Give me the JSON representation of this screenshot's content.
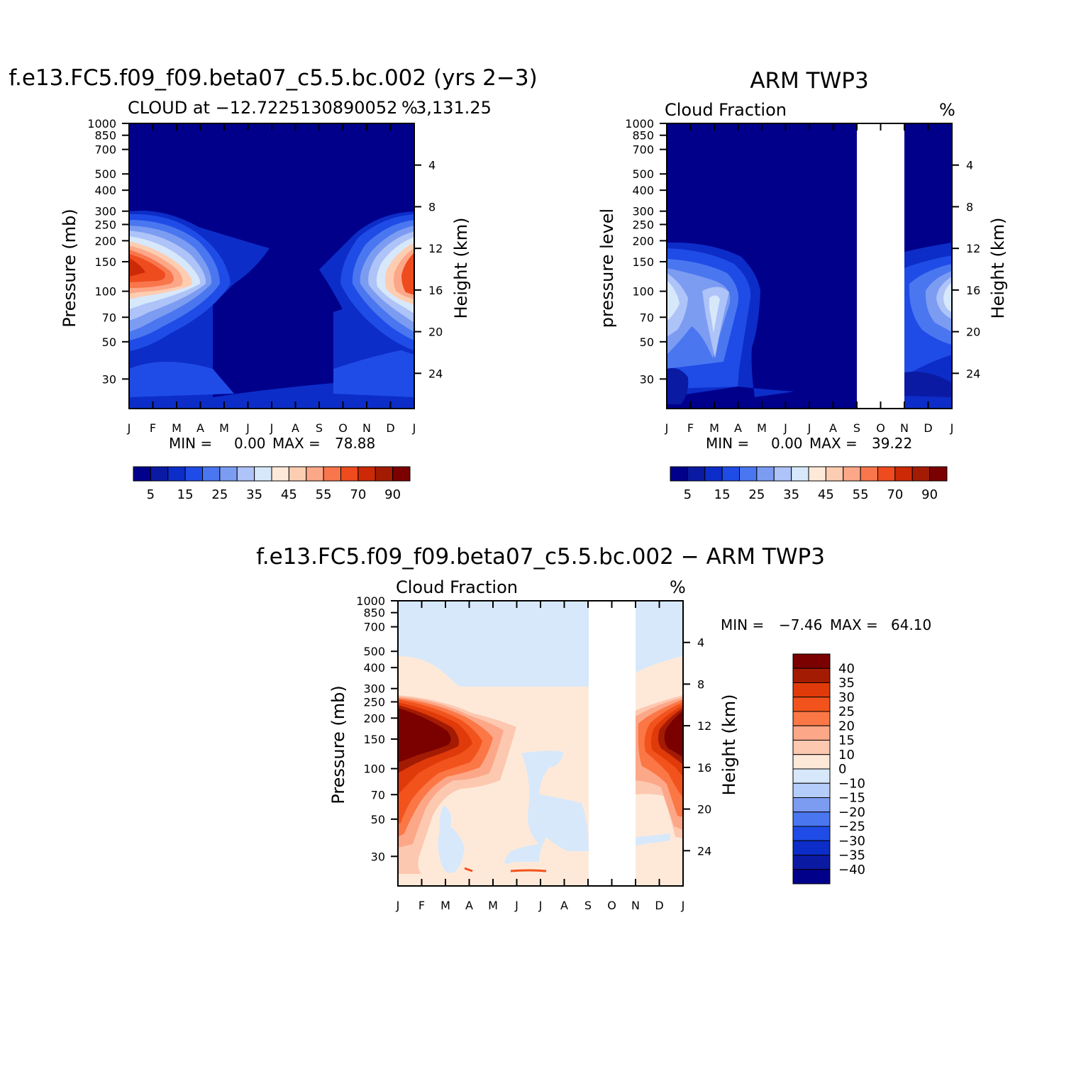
{
  "colors": {
    "cf_levels": [
      "#00008b",
      "#0a1aa3",
      "#0d2dc8",
      "#1f4ce6",
      "#4a77f0",
      "#7c9cf2",
      "#aec3f7",
      "#d7e8fb",
      "#fee9d9",
      "#fdcdb2",
      "#fca788",
      "#f9764c",
      "#ee4b1e",
      "#cc2a06",
      "#a41b03",
      "#7b0000"
    ],
    "diff_levels": [
      "#7b0000",
      "#a41b03",
      "#e03a0a",
      "#f2531c",
      "#fb7746",
      "#fca788",
      "#fdc8b0",
      "#fee9d9",
      "#d7e8fb",
      "#b4cdfb",
      "#7c9cf2",
      "#4a77f0",
      "#1f4ce6",
      "#0d2dc8",
      "#0a1aa3",
      "#00008b"
    ]
  },
  "panels": {
    "model": {
      "title": "f.e13.FC5.f09_f09.beta07_c5.5.bc.002 (yrs 2−3)",
      "subtitle_left": "CLOUD at −12.7225130890052",
      "subtitle_right": "3,131.25",
      "units": "%",
      "ylabel_left": "Pressure (mb)",
      "ylabel_right": "Height (km)",
      "minmax": {
        "min_label": "MIN =",
        "min": "0.00",
        "max_label": "MAX =",
        "max": "78.88"
      }
    },
    "obs": {
      "title": "ARM TWP3",
      "subtitle_left": "Cloud Fraction",
      "units": "%",
      "ylabel_left": "pressure level",
      "ylabel_right": "Height (km)",
      "minmax": {
        "min_label": "MIN =",
        "min": "0.00",
        "max_label": "MAX =",
        "max": "39.22"
      }
    },
    "diff": {
      "title": "f.e13.FC5.f09_f09.beta07_c5.5.bc.002 − ARM TWP3",
      "subtitle_left": "Cloud Fraction",
      "units": "%",
      "ylabel_left": "Pressure (mb)",
      "ylabel_right": "Height (km)",
      "minmax": {
        "min_label": "MIN =",
        "min": "−7.46",
        "max_label": "MAX =",
        "max": "64.10"
      }
    }
  },
  "chart_data": [
    {
      "type": "heatmap",
      "title": "CLOUD at −12.7225130890052 3,131.25",
      "xlabel": "",
      "ylabel": "Pressure (mb)",
      "x": [
        "J",
        "F",
        "M",
        "A",
        "M",
        "J",
        "J",
        "A",
        "S",
        "O",
        "N",
        "D",
        "J"
      ],
      "y_pressure_ticks": [
        30,
        50,
        70,
        100,
        150,
        200,
        250,
        300,
        400,
        500,
        700,
        850,
        1000
      ],
      "y_height_ticks_km": [
        4,
        8,
        12,
        16,
        20,
        24
      ],
      "min": 0.0,
      "max": 78.88,
      "description": "Two high-cloud maxima (~70–80%) near 150–200 mb in Jan and Dec, near 0 elsewhere",
      "colorbar": {
        "labels": [
          "5",
          "15",
          "25",
          "35",
          "45",
          "55",
          "70",
          "90"
        ]
      }
    },
    {
      "type": "heatmap",
      "title": "Cloud Fraction",
      "ylabel": "pressure level",
      "x": [
        "J",
        "F",
        "M",
        "A",
        "M",
        "J",
        "J",
        "A",
        "S",
        "O",
        "N",
        "D",
        "J"
      ],
      "y_pressure_ticks": [
        30,
        50,
        70,
        100,
        150,
        200,
        250,
        300,
        400,
        500,
        700,
        850,
        1000
      ],
      "y_height_ticks_km": [
        4,
        8,
        12,
        16,
        20,
        24
      ],
      "min": 0.0,
      "max": 39.22,
      "missing": [
        "S",
        "N"
      ],
      "colorbar": {
        "labels": [
          "5",
          "15",
          "25",
          "35",
          "45",
          "55",
          "70",
          "90"
        ]
      }
    },
    {
      "type": "heatmap",
      "title": "Cloud Fraction",
      "ylabel": "Pressure (mb)",
      "x": [
        "J",
        "F",
        "M",
        "A",
        "M",
        "J",
        "J",
        "A",
        "S",
        "O",
        "N",
        "D",
        "J"
      ],
      "y_pressure_ticks": [
        30,
        50,
        70,
        100,
        150,
        200,
        250,
        300,
        400,
        500,
        700,
        850,
        1000
      ],
      "y_height_ticks_km": [
        4,
        8,
        12,
        16,
        20,
        24
      ],
      "min": -7.46,
      "max": 64.1,
      "missing": [
        "S",
        "N"
      ],
      "colorbar": {
        "labels": [
          "40",
          "35",
          "30",
          "25",
          "20",
          "15",
          "10",
          "0",
          "−10",
          "−15",
          "−20",
          "−25",
          "−30",
          "−35",
          "−40"
        ]
      }
    }
  ]
}
